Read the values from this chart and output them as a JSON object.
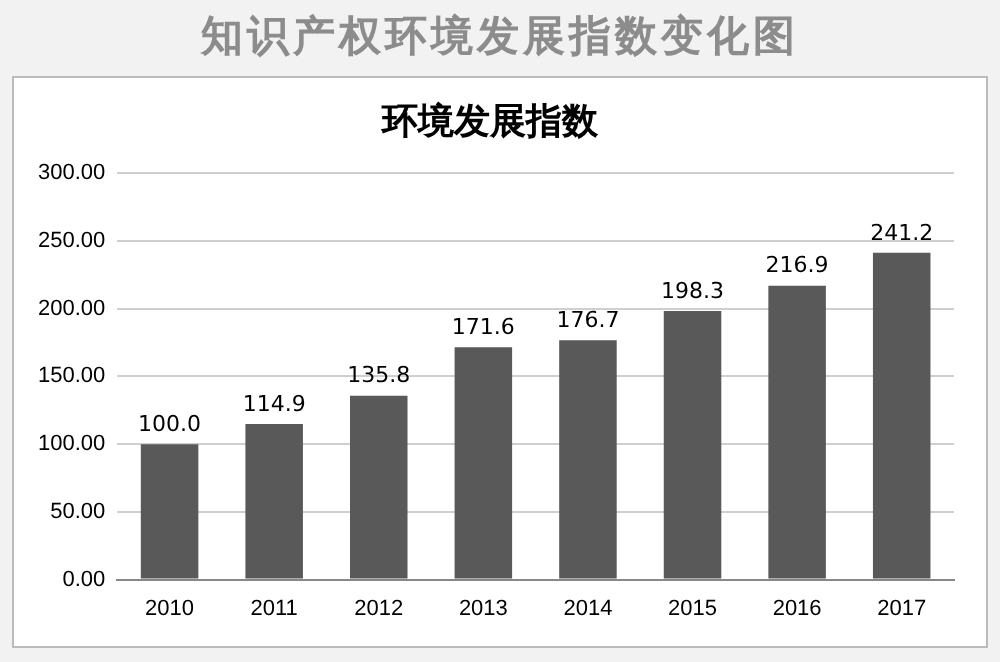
{
  "chart_data": {
    "type": "bar",
    "title": "知识产权环境发展指数变化图",
    "subtitle": "环境发展指数",
    "categories": [
      "2010",
      "2011",
      "2012",
      "2013",
      "2014",
      "2015",
      "2016",
      "2017"
    ],
    "values": [
      100.0,
      114.9,
      135.8,
      171.6,
      176.7,
      198.3,
      216.9,
      241.2
    ],
    "value_labels": [
      "100.0",
      "114.9",
      "135.8",
      "171.6",
      "176.7",
      "198.3",
      "216.9",
      "241.2"
    ],
    "color": "#595959",
    "ylim": [
      0,
      300
    ],
    "yticks": [
      {
        "value": 0,
        "label": "0.00"
      },
      {
        "value": 50,
        "label": "50.00"
      },
      {
        "value": 100,
        "label": "100.00"
      },
      {
        "value": 150,
        "label": "150.00"
      },
      {
        "value": 200,
        "label": "200.00"
      },
      {
        "value": 250,
        "label": "250.00"
      },
      {
        "value": 300,
        "label": "300.00"
      }
    ],
    "grid": "y",
    "legend": false
  }
}
